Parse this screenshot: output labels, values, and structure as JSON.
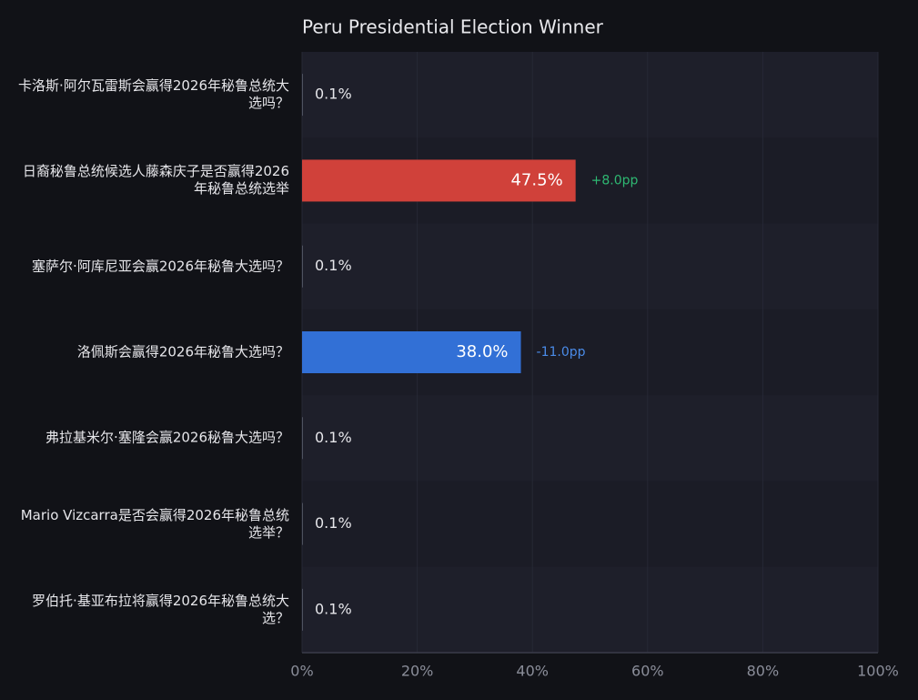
{
  "chart_data": {
    "type": "hbar",
    "title": "Peru Presidential Election Winner",
    "categories": [
      "卡洛斯·阿尔瓦雷斯会赢得2026年秘鲁总统大选吗？",
      "日裔秘鲁总统候选人藤森庆子是否赢得2026年秘鲁总统选举",
      "塞萨尔·阿库尼亚会赢2026年秘鲁大选吗？",
      "洛佩斯会赢得2026年秘鲁大选吗？",
      "弗拉基米尔·塞隆会赢2026秘鲁大选吗？",
      "Mario Vizcarra是否会赢得2026年秘鲁总统选举？",
      "罗伯托·基亚布拉将赢得2026年秘鲁总统大选？"
    ],
    "values": [
      0.1,
      47.5,
      0.1,
      38.0,
      0.1,
      0.1,
      0.1
    ],
    "value_labels": [
      "0.1%",
      "47.5%",
      "0.1%",
      "38.0%",
      "0.1%",
      "0.1%",
      "0.1%"
    ],
    "colors": [
      "#6b7080",
      "#d0413a",
      "#6b7080",
      "#3270d6",
      "#6b7080",
      "#6b7080",
      "#6b7080"
    ],
    "change_labels": [
      null,
      "+8.0pp",
      null,
      "-11.0pp",
      null,
      null,
      null
    ],
    "change_colors": [
      null,
      "#2eb872",
      null,
      "#4a8be8",
      null,
      null,
      null
    ],
    "xlim": [
      0,
      100
    ],
    "xticks": [
      {
        "value": 0,
        "label": "0%"
      },
      {
        "value": 20,
        "label": "20%"
      },
      {
        "value": 40,
        "label": "40%"
      },
      {
        "value": 60,
        "label": "60%"
      },
      {
        "value": 80,
        "label": "80%"
      },
      {
        "value": 100,
        "label": "100%"
      }
    ],
    "grid": true
  }
}
